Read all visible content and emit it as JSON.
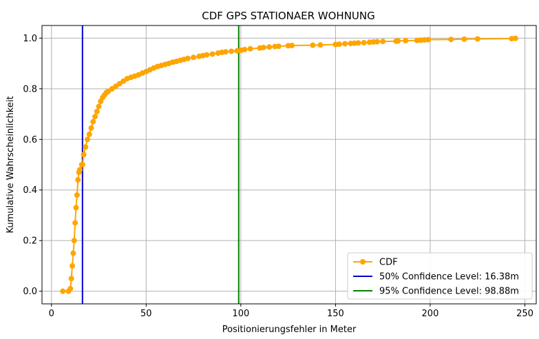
{
  "chart_data": {
    "type": "line",
    "title": "CDF GPS STATIONAER WOHNUNG",
    "xlabel": "Positionierungsfehler in Meter",
    "ylabel": "Kumulative Wahrscheinlichkeit",
    "xlim": [
      -5,
      256
    ],
    "ylim": [
      -0.05,
      1.05
    ],
    "xticks": [
      0,
      50,
      100,
      150,
      200,
      250
    ],
    "xtick_labels": [
      "0",
      "50",
      "100",
      "150",
      "200",
      "250"
    ],
    "yticks": [
      0.0,
      0.2,
      0.4,
      0.6,
      0.8,
      1.0
    ],
    "ytick_labels": [
      "0.0",
      "0.2",
      "0.4",
      "0.6",
      "0.8",
      "1.0"
    ],
    "grid": true,
    "legend_position": "lower-right",
    "series": [
      {
        "name": "CDF",
        "color": "#FFA500",
        "marker": "circle",
        "x": [
          6,
          9,
          10,
          10.5,
          11,
          11.5,
          12,
          12.5,
          13,
          13.5,
          14,
          14.5,
          15,
          16,
          16.4,
          17,
          18,
          19,
          20,
          21,
          22,
          23,
          24,
          25,
          26,
          27,
          28,
          29,
          30,
          32,
          34,
          36,
          38,
          40,
          42,
          44,
          46,
          48,
          50,
          52,
          54,
          56,
          58,
          60,
          62,
          64,
          66,
          68,
          70,
          72,
          75,
          78,
          80,
          82,
          85,
          88,
          90,
          92,
          95,
          98,
          100,
          102,
          105,
          110,
          112,
          115,
          118,
          120,
          125,
          127,
          138,
          142,
          150,
          152,
          155,
          158,
          160,
          162,
          165,
          168,
          170,
          172,
          175,
          182,
          183,
          187,
          193,
          195,
          197,
          199,
          211,
          218,
          225,
          243,
          245
        ],
        "y": [
          0.0,
          0.0,
          0.01,
          0.05,
          0.1,
          0.15,
          0.2,
          0.27,
          0.33,
          0.38,
          0.44,
          0.47,
          0.48,
          0.5,
          0.5,
          0.54,
          0.57,
          0.6,
          0.62,
          0.645,
          0.67,
          0.69,
          0.71,
          0.73,
          0.75,
          0.765,
          0.775,
          0.785,
          0.79,
          0.8,
          0.81,
          0.82,
          0.83,
          0.84,
          0.845,
          0.85,
          0.855,
          0.862,
          0.868,
          0.875,
          0.882,
          0.888,
          0.892,
          0.896,
          0.9,
          0.905,
          0.908,
          0.912,
          0.916,
          0.92,
          0.924,
          0.928,
          0.931,
          0.934,
          0.937,
          0.941,
          0.944,
          0.946,
          0.948,
          0.95,
          0.952,
          0.955,
          0.958,
          0.961,
          0.963,
          0.965,
          0.967,
          0.968,
          0.97,
          0.971,
          0.972,
          0.973,
          0.975,
          0.976,
          0.978,
          0.979,
          0.98,
          0.981,
          0.982,
          0.984,
          0.985,
          0.986,
          0.987,
          0.988,
          0.989,
          0.99,
          0.991,
          0.992,
          0.993,
          0.994,
          0.995,
          0.996,
          0.997,
          0.998,
          0.999
        ]
      },
      {
        "name": "50% Confidence Level: 16.38m",
        "color": "#0000CC",
        "type": "vline",
        "x": 16.38
      },
      {
        "name": "95% Confidence Level: 98.88m",
        "color": "#008000",
        "type": "vline",
        "x": 98.88
      }
    ]
  }
}
